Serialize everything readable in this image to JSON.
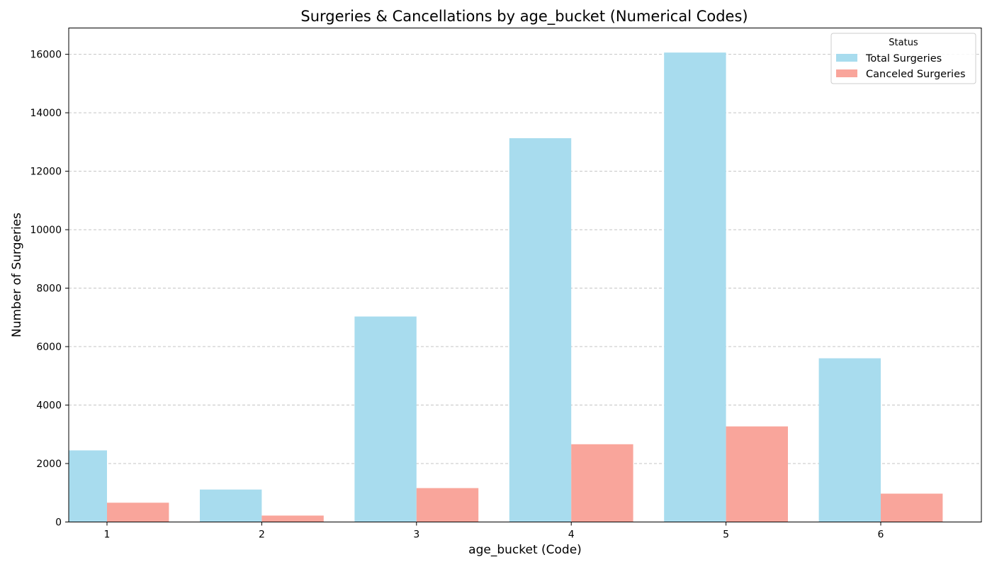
{
  "chart_data": {
    "type": "bar",
    "title": "Surgeries & Cancellations by age_bucket (Numerical Codes)",
    "xlabel": "age_bucket (Code)",
    "ylabel": "Number of Surgeries",
    "categories": [
      "1",
      "2",
      "3",
      "4",
      "5",
      "6"
    ],
    "series": [
      {
        "name": "Total Surgeries",
        "values": [
          2450,
          1110,
          7030,
          13130,
          16060,
          5600
        ],
        "color": "#a8dcee"
      },
      {
        "name": "Canceled Surgeries",
        "values": [
          660,
          220,
          1160,
          2660,
          3270,
          970
        ],
        "color": "#f9a59b"
      }
    ],
    "ylim": [
      0,
      16900
    ],
    "yticks": [
      0,
      2000,
      4000,
      6000,
      8000,
      10000,
      12000,
      14000,
      16000
    ],
    "grid": "y-dashed",
    "legend": {
      "title": "Status",
      "position": "top-right"
    }
  }
}
